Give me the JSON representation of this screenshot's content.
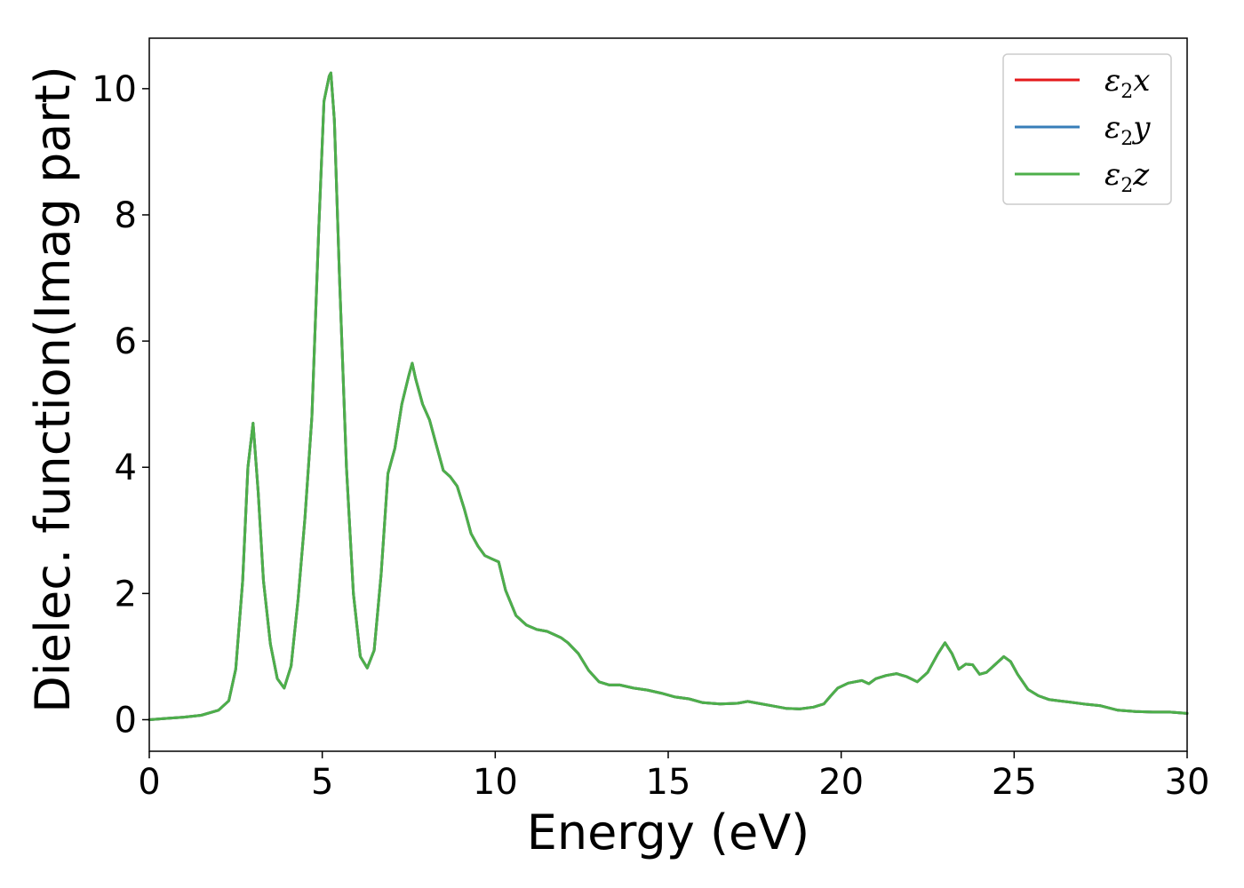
{
  "chart_data": {
    "type": "line",
    "title": "",
    "xlabel": "Energy (eV)",
    "ylabel": "Dielec. function(Imag part)",
    "xlim": [
      0,
      30
    ],
    "ylim": [
      -0.5,
      10.8
    ],
    "xticks": [
      0,
      5,
      10,
      15,
      20,
      25,
      30
    ],
    "yticks": [
      0,
      2,
      4,
      6,
      8,
      10
    ],
    "xtick_labels": [
      "0",
      "5",
      "10",
      "15",
      "20",
      "25",
      "30"
    ],
    "ytick_labels": [
      "0",
      "2",
      "4",
      "6",
      "8",
      "10"
    ],
    "grid": false,
    "legend_position": "top-right",
    "series": [
      {
        "label_main": "ε",
        "label_sub": "2",
        "label_tail": "x",
        "color": "#e41a1c"
      },
      {
        "label_main": "ε",
        "label_sub": "2",
        "label_tail": "y",
        "color": "#377eb8"
      },
      {
        "label_main": "ε",
        "label_sub": "2",
        "label_tail": "z",
        "color": "#4daf4a"
      }
    ],
    "x": [
      0,
      0.5,
      1.0,
      1.5,
      2.0,
      2.3,
      2.5,
      2.7,
      2.85,
      3.0,
      3.15,
      3.3,
      3.5,
      3.7,
      3.9,
      4.1,
      4.3,
      4.5,
      4.7,
      4.9,
      5.05,
      5.2,
      5.25,
      5.35,
      5.5,
      5.7,
      5.9,
      6.1,
      6.3,
      6.5,
      6.7,
      6.9,
      7.1,
      7.3,
      7.5,
      7.6,
      7.7,
      7.9,
      8.1,
      8.3,
      8.5,
      8.7,
      8.9,
      9.1,
      9.3,
      9.5,
      9.7,
      9.9,
      10.1,
      10.3,
      10.6,
      10.9,
      11.2,
      11.5,
      11.7,
      11.9,
      12.1,
      12.4,
      12.7,
      13.0,
      13.3,
      13.6,
      14.0,
      14.4,
      14.8,
      15.2,
      15.6,
      16.0,
      16.5,
      17.0,
      17.3,
      17.6,
      18.0,
      18.4,
      18.8,
      19.2,
      19.5,
      19.7,
      19.9,
      20.2,
      20.4,
      20.6,
      20.8,
      21.0,
      21.3,
      21.6,
      21.9,
      22.2,
      22.5,
      22.8,
      23.0,
      23.2,
      23.4,
      23.6,
      23.8,
      24.0,
      24.2,
      24.4,
      24.7,
      24.9,
      25.1,
      25.4,
      25.7,
      26.0,
      26.3,
      26.6,
      27.0,
      27.5,
      28.0,
      28.5,
      29.0,
      29.5,
      30.0
    ],
    "values": [
      0.0,
      0.02,
      0.04,
      0.07,
      0.15,
      0.3,
      0.8,
      2.2,
      4.0,
      4.7,
      3.6,
      2.2,
      1.2,
      0.65,
      0.5,
      0.85,
      1.9,
      3.2,
      4.8,
      7.8,
      9.8,
      10.2,
      10.25,
      9.5,
      7.0,
      4.0,
      2.0,
      1.0,
      0.82,
      1.1,
      2.3,
      3.9,
      4.3,
      5.0,
      5.45,
      5.65,
      5.4,
      5.0,
      4.75,
      4.35,
      3.95,
      3.85,
      3.7,
      3.35,
      2.95,
      2.75,
      2.6,
      2.55,
      2.5,
      2.05,
      1.65,
      1.5,
      1.43,
      1.4,
      1.35,
      1.3,
      1.22,
      1.05,
      0.78,
      0.6,
      0.55,
      0.55,
      0.5,
      0.47,
      0.42,
      0.36,
      0.33,
      0.27,
      0.25,
      0.26,
      0.29,
      0.26,
      0.22,
      0.18,
      0.17,
      0.2,
      0.25,
      0.38,
      0.5,
      0.58,
      0.6,
      0.62,
      0.57,
      0.65,
      0.7,
      0.73,
      0.68,
      0.6,
      0.75,
      1.05,
      1.22,
      1.05,
      0.8,
      0.88,
      0.87,
      0.72,
      0.75,
      0.85,
      1.0,
      0.92,
      0.72,
      0.48,
      0.38,
      0.32,
      0.3,
      0.28,
      0.25,
      0.22,
      0.15,
      0.13,
      0.12,
      0.12,
      0.1
    ]
  }
}
